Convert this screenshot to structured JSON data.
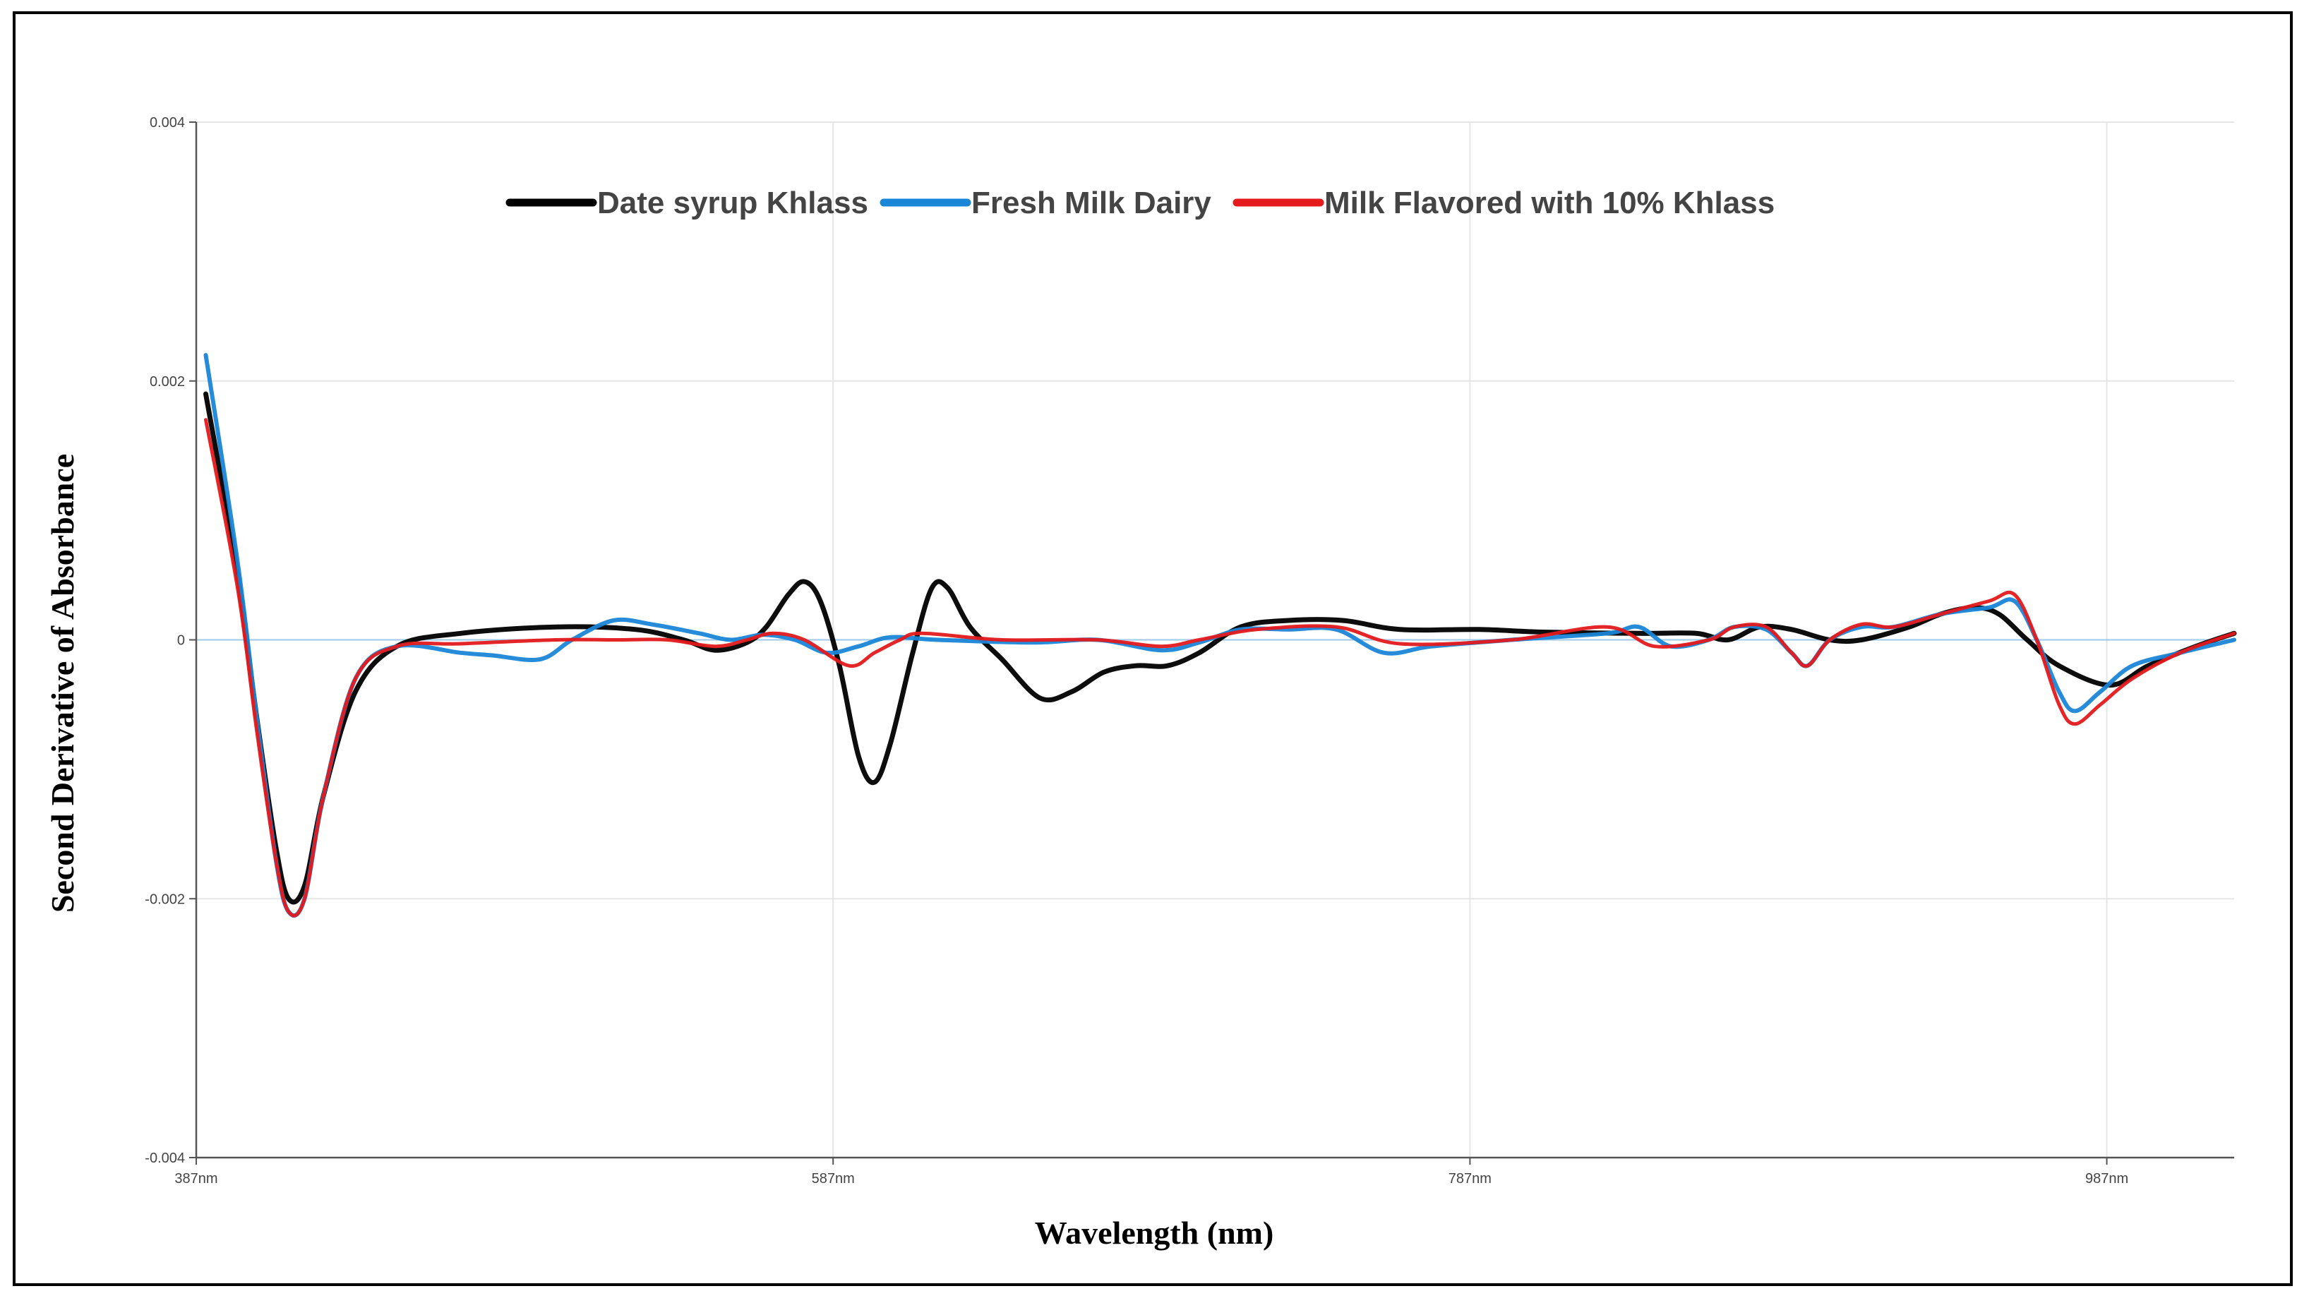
{
  "chart_data": {
    "type": "line",
    "xlabel": "Wavelength (nm)",
    "ylabel": "Second Derivative of Absorbance",
    "xlim": [
      387,
      1027
    ],
    "ylim": [
      -0.004,
      0.004
    ],
    "x_ticks": [
      387,
      587,
      787,
      987
    ],
    "x_tick_labels": [
      "387nm",
      "587nm",
      "787nm",
      "987nm"
    ],
    "y_ticks": [
      -0.004,
      -0.002,
      0,
      0.002,
      0.004
    ],
    "y_tick_labels": [
      "-0.004",
      "-0.002",
      "0",
      "0.002",
      "0.004"
    ],
    "grid": true,
    "legend_position": "top-center",
    "series": [
      {
        "name": "Date syrup Khlass",
        "color": "#000000",
        "points": [
          [
            390,
            0.0019
          ],
          [
            400,
            0.0005
          ],
          [
            406,
            -0.0006
          ],
          [
            412,
            -0.0016
          ],
          [
            416,
            -0.002
          ],
          [
            421,
            -0.0019
          ],
          [
            427,
            -0.0012
          ],
          [
            437,
            -0.0004
          ],
          [
            450,
            -5e-05
          ],
          [
            470,
            5e-05
          ],
          [
            500,
            0.0001
          ],
          [
            525,
            8e-05
          ],
          [
            540,
            0.0
          ],
          [
            550,
            -8e-05
          ],
          [
            560,
            -2e-05
          ],
          [
            566,
            0.0001
          ],
          [
            573,
            0.00035
          ],
          [
            578,
            0.00045
          ],
          [
            583,
            0.0003
          ],
          [
            589,
            -0.0002
          ],
          [
            595,
            -0.0009
          ],
          [
            600,
            -0.0011
          ],
          [
            605,
            -0.0008
          ],
          [
            612,
            -0.0001
          ],
          [
            618,
            0.0004
          ],
          [
            623,
            0.0004
          ],
          [
            630,
            0.0001
          ],
          [
            640,
            -0.00015
          ],
          [
            652,
            -0.00045
          ],
          [
            662,
            -0.0004
          ],
          [
            672,
            -0.00025
          ],
          [
            682,
            -0.0002
          ],
          [
            692,
            -0.0002
          ],
          [
            702,
            -0.0001
          ],
          [
            715,
            0.0001
          ],
          [
            730,
            0.00015
          ],
          [
            747,
            0.00015
          ],
          [
            765,
            8e-05
          ],
          [
            790,
            8e-05
          ],
          [
            810,
            6e-05
          ],
          [
            840,
            5e-05
          ],
          [
            858,
            5e-05
          ],
          [
            868,
            0.0
          ],
          [
            878,
            0.0001
          ],
          [
            888,
            8e-05
          ],
          [
            900,
            0.0
          ],
          [
            910,
            0.0
          ],
          [
            925,
            0.0001
          ],
          [
            935,
            0.0002
          ],
          [
            945,
            0.00025
          ],
          [
            953,
            0.0002
          ],
          [
            962,
            0.0
          ],
          [
            972,
            -0.0002
          ],
          [
            988,
            -0.00035
          ],
          [
            1000,
            -0.0002
          ],
          [
            1015,
            -5e-05
          ],
          [
            1027,
            5e-05
          ]
        ]
      },
      {
        "name": "Fresh Milk Dairy",
        "color": "#1a86d8",
        "points": [
          [
            390,
            0.0022
          ],
          [
            400,
            0.0006
          ],
          [
            406,
            -0.0006
          ],
          [
            412,
            -0.0017
          ],
          [
            416,
            -0.0021
          ],
          [
            421,
            -0.002
          ],
          [
            427,
            -0.0012
          ],
          [
            437,
            -0.0003
          ],
          [
            450,
            -5e-05
          ],
          [
            470,
            -0.0001
          ],
          [
            480,
            -0.00012
          ],
          [
            495,
            -0.00015
          ],
          [
            505,
            0.0
          ],
          [
            518,
            0.00015
          ],
          [
            530,
            0.00012
          ],
          [
            545,
            5e-05
          ],
          [
            555,
            0.0
          ],
          [
            565,
            4e-05
          ],
          [
            575,
            0.0
          ],
          [
            585,
            -0.0001
          ],
          [
            595,
            -5e-05
          ],
          [
            605,
            2e-05
          ],
          [
            620,
            0.0
          ],
          [
            650,
            -2e-05
          ],
          [
            670,
            0.0
          ],
          [
            690,
            -8e-05
          ],
          [
            702,
            -2e-05
          ],
          [
            715,
            8e-05
          ],
          [
            730,
            8e-05
          ],
          [
            745,
            8e-05
          ],
          [
            760,
            -0.0001
          ],
          [
            775,
            -5e-05
          ],
          [
            800,
            0.0
          ],
          [
            830,
            5e-05
          ],
          [
            840,
            0.0001
          ],
          [
            850,
            -5e-05
          ],
          [
            862,
            0.0
          ],
          [
            870,
            0.0001
          ],
          [
            880,
            8e-05
          ],
          [
            888,
            -0.0001
          ],
          [
            893,
            -0.0002
          ],
          [
            900,
            0.0
          ],
          [
            910,
            0.0001
          ],
          [
            920,
            0.0001
          ],
          [
            935,
            0.0002
          ],
          [
            950,
            0.00025
          ],
          [
            958,
            0.0003
          ],
          [
            965,
            0.0
          ],
          [
            972,
            -0.0004
          ],
          [
            977,
            -0.00055
          ],
          [
            985,
            -0.0004
          ],
          [
            995,
            -0.0002
          ],
          [
            1010,
            -0.0001
          ],
          [
            1027,
            0.0
          ]
        ]
      },
      {
        "name": "Milk Flavored with 10% Khlass",
        "color": "#e41a1c",
        "points": [
          [
            390,
            0.0017
          ],
          [
            400,
            0.0004
          ],
          [
            406,
            -0.0007
          ],
          [
            412,
            -0.0017
          ],
          [
            416,
            -0.0021
          ],
          [
            421,
            -0.002
          ],
          [
            427,
            -0.0012
          ],
          [
            437,
            -0.0003
          ],
          [
            450,
            -5e-05
          ],
          [
            470,
            -3e-05
          ],
          [
            500,
            0.0
          ],
          [
            520,
            0.0
          ],
          [
            535,
            0.0
          ],
          [
            550,
            -5e-05
          ],
          [
            560,
            0.0
          ],
          [
            568,
            5e-05
          ],
          [
            578,
            0.0
          ],
          [
            592,
            -0.0002
          ],
          [
            600,
            -0.0001
          ],
          [
            608,
            0.0
          ],
          [
            615,
            5e-05
          ],
          [
            640,
            0.0
          ],
          [
            670,
            0.0
          ],
          [
            690,
            -5e-05
          ],
          [
            702,
            0.0
          ],
          [
            720,
            8e-05
          ],
          [
            745,
            0.0001
          ],
          [
            765,
            -3e-05
          ],
          [
            800,
            0.0
          ],
          [
            830,
            0.0001
          ],
          [
            845,
            -5e-05
          ],
          [
            862,
            0.0
          ],
          [
            870,
            0.0001
          ],
          [
            880,
            0.0001
          ],
          [
            888,
            -0.0001
          ],
          [
            893,
            -0.0002
          ],
          [
            900,
            0.0
          ],
          [
            910,
            0.00012
          ],
          [
            920,
            0.0001
          ],
          [
            935,
            0.0002
          ],
          [
            950,
            0.0003
          ],
          [
            958,
            0.00035
          ],
          [
            965,
            0.0
          ],
          [
            972,
            -0.0005
          ],
          [
            977,
            -0.00065
          ],
          [
            985,
            -0.0005
          ],
          [
            995,
            -0.0003
          ],
          [
            1010,
            -0.0001
          ],
          [
            1027,
            5e-05
          ]
        ]
      }
    ]
  }
}
